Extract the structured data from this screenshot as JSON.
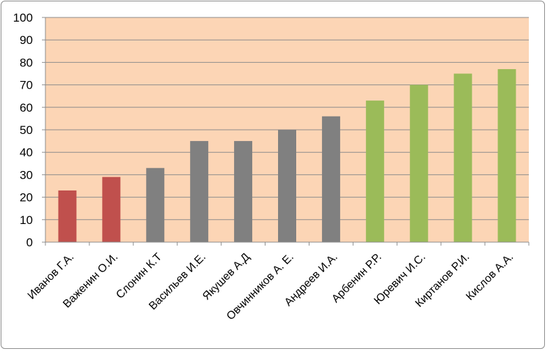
{
  "chart_data": {
    "type": "bar",
    "categories": [
      "Иванов Г.А.",
      "Важенин О.И.",
      "Слонин К.Т",
      "Васильев И.Е.",
      "Якушев А.Д",
      "Овчинников  А. Е.",
      "Андреев И.А.",
      "Арбенин Р.Р.",
      "Юревич И.С.",
      "Киртанов Р.И.",
      "Кислов  А.А."
    ],
    "values": [
      23,
      29,
      33,
      45,
      45,
      50,
      56,
      63,
      70,
      75,
      77
    ],
    "bar_colors": [
      "#c0504d",
      "#c0504d",
      "#808080",
      "#808080",
      "#808080",
      "#808080",
      "#808080",
      "#9bbb59",
      "#9bbb59",
      "#9bbb59",
      "#9bbb59"
    ],
    "ylim": [
      0,
      100
    ],
    "yticks": [
      0,
      10,
      20,
      30,
      40,
      50,
      60,
      70,
      80,
      90,
      100
    ],
    "grid": true,
    "legend": "none",
    "plot_background": "#fcd5b5",
    "gridline_color": "#8c8c8c"
  }
}
